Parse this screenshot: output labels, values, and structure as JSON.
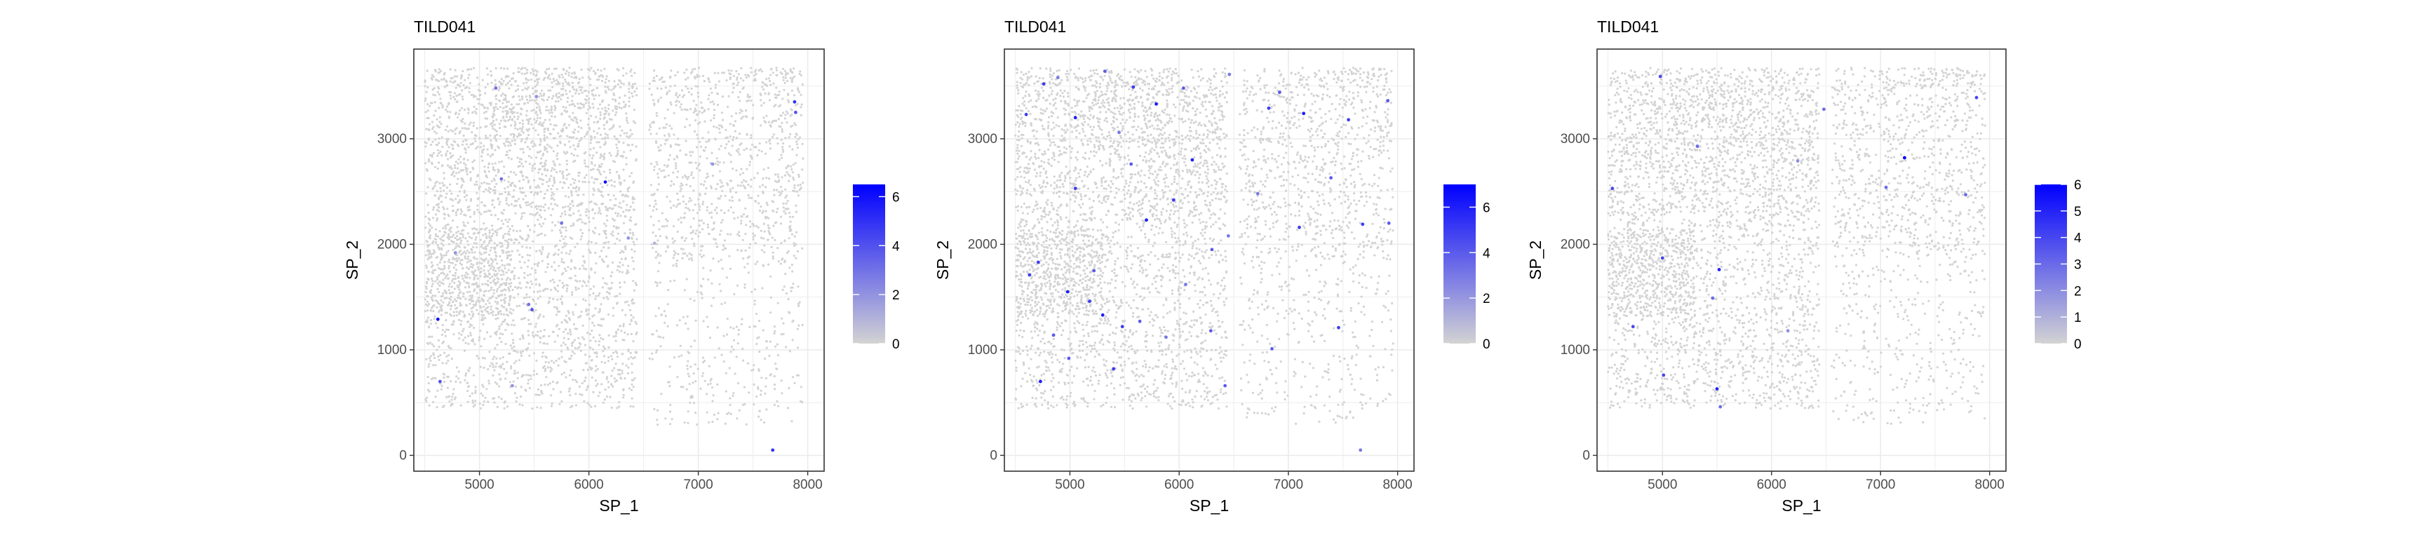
{
  "chart_data": [
    {
      "type": "scatter",
      "title": "TILD041",
      "xlabel": "SP_1",
      "ylabel": "SP_2",
      "xlim": [
        4400,
        8150
      ],
      "ylim": [
        -150,
        3850
      ],
      "xticks": [
        5000,
        6000,
        7000,
        8000
      ],
      "yticks": [
        0,
        1000,
        2000,
        3000
      ],
      "grid": true,
      "legend": {
        "position": "right",
        "range": [
          0,
          6.5
        ],
        "ticks": [
          0,
          2,
          4,
          6
        ],
        "low_color": "#d3d3d3",
        "high_color": "#0000ff"
      },
      "highlights": [
        {
          "x": 5150,
          "y": 3480,
          "v": 3
        },
        {
          "x": 5520,
          "y": 3400,
          "v": 2
        },
        {
          "x": 7880,
          "y": 3350,
          "v": 5
        },
        {
          "x": 7890,
          "y": 3250,
          "v": 4
        },
        {
          "x": 5200,
          "y": 2620,
          "v": 3
        },
        {
          "x": 6150,
          "y": 2590,
          "v": 6
        },
        {
          "x": 7130,
          "y": 2760,
          "v": 2
        },
        {
          "x": 6360,
          "y": 2060,
          "v": 2
        },
        {
          "x": 5750,
          "y": 2200,
          "v": 3
        },
        {
          "x": 4780,
          "y": 1920,
          "v": 2
        },
        {
          "x": 5480,
          "y": 1380,
          "v": 4
        },
        {
          "x": 4620,
          "y": 1290,
          "v": 6
        },
        {
          "x": 5450,
          "y": 1430,
          "v": 3
        },
        {
          "x": 4640,
          "y": 700,
          "v": 4
        },
        {
          "x": 6600,
          "y": 2010,
          "v": 1
        },
        {
          "x": 7680,
          "y": 50,
          "v": 5
        },
        {
          "x": 5300,
          "y": 660,
          "v": 2
        }
      ]
    },
    {
      "type": "scatter",
      "title": "TILD041",
      "xlabel": "SP_1",
      "ylabel": "SP_2",
      "xlim": [
        4400,
        8150
      ],
      "ylim": [
        -150,
        3850
      ],
      "xticks": [
        5000,
        6000,
        7000,
        8000
      ],
      "yticks": [
        0,
        1000,
        2000,
        3000
      ],
      "grid": true,
      "legend": {
        "position": "right",
        "range": [
          0,
          7
        ],
        "ticks": [
          0,
          2,
          4,
          6
        ],
        "low_color": "#d3d3d3",
        "high_color": "#0000ff"
      },
      "highlights": [
        {
          "x": 4760,
          "y": 3520,
          "v": 5
        },
        {
          "x": 4890,
          "y": 3580,
          "v": 3
        },
        {
          "x": 5320,
          "y": 3640,
          "v": 4
        },
        {
          "x": 5580,
          "y": 3490,
          "v": 5
        },
        {
          "x": 5790,
          "y": 3330,
          "v": 6
        },
        {
          "x": 6040,
          "y": 3480,
          "v": 4
        },
        {
          "x": 6460,
          "y": 3610,
          "v": 3
        },
        {
          "x": 6820,
          "y": 3290,
          "v": 5
        },
        {
          "x": 6920,
          "y": 3440,
          "v": 4
        },
        {
          "x": 7140,
          "y": 3240,
          "v": 6
        },
        {
          "x": 7550,
          "y": 3180,
          "v": 5
        },
        {
          "x": 7910,
          "y": 3360,
          "v": 4
        },
        {
          "x": 4600,
          "y": 3230,
          "v": 5
        },
        {
          "x": 5050,
          "y": 3200,
          "v": 6
        },
        {
          "x": 5450,
          "y": 3060,
          "v": 3
        },
        {
          "x": 6120,
          "y": 2800,
          "v": 6
        },
        {
          "x": 5560,
          "y": 2760,
          "v": 4
        },
        {
          "x": 5050,
          "y": 2530,
          "v": 5
        },
        {
          "x": 5950,
          "y": 2420,
          "v": 5
        },
        {
          "x": 6720,
          "y": 2480,
          "v": 3
        },
        {
          "x": 7390,
          "y": 2630,
          "v": 4
        },
        {
          "x": 7680,
          "y": 2190,
          "v": 5
        },
        {
          "x": 7920,
          "y": 2200,
          "v": 4
        },
        {
          "x": 6450,
          "y": 2080,
          "v": 3
        },
        {
          "x": 7100,
          "y": 2160,
          "v": 5
        },
        {
          "x": 5700,
          "y": 2230,
          "v": 6
        },
        {
          "x": 4710,
          "y": 1830,
          "v": 5
        },
        {
          "x": 4980,
          "y": 1550,
          "v": 6
        },
        {
          "x": 5180,
          "y": 1460,
          "v": 5
        },
        {
          "x": 5300,
          "y": 1330,
          "v": 6
        },
        {
          "x": 5480,
          "y": 1220,
          "v": 5
        },
        {
          "x": 5640,
          "y": 1270,
          "v": 4
        },
        {
          "x": 4850,
          "y": 1140,
          "v": 4
        },
        {
          "x": 4630,
          "y": 1710,
          "v": 5
        },
        {
          "x": 5220,
          "y": 1750,
          "v": 4
        },
        {
          "x": 6300,
          "y": 1950,
          "v": 4
        },
        {
          "x": 6060,
          "y": 1620,
          "v": 3
        },
        {
          "x": 6290,
          "y": 1180,
          "v": 4
        },
        {
          "x": 5880,
          "y": 1120,
          "v": 3
        },
        {
          "x": 6850,
          "y": 1010,
          "v": 4
        },
        {
          "x": 7460,
          "y": 1210,
          "v": 5
        },
        {
          "x": 4730,
          "y": 700,
          "v": 6
        },
        {
          "x": 4990,
          "y": 920,
          "v": 4
        },
        {
          "x": 5400,
          "y": 820,
          "v": 5
        },
        {
          "x": 6420,
          "y": 660,
          "v": 4
        },
        {
          "x": 7660,
          "y": 50,
          "v": 3
        }
      ]
    },
    {
      "type": "scatter",
      "title": "TILD041",
      "xlabel": "SP_1",
      "ylabel": "SP_2",
      "xlim": [
        4400,
        8150
      ],
      "ylim": [
        -150,
        3850
      ],
      "xticks": [
        5000,
        6000,
        7000,
        8000
      ],
      "yticks": [
        0,
        1000,
        2000,
        3000
      ],
      "grid": true,
      "legend": {
        "position": "right",
        "range": [
          0,
          6
        ],
        "ticks": [
          0,
          1,
          2,
          3,
          4,
          5,
          6
        ],
        "low_color": "#d3d3d3",
        "high_color": "#0000ff"
      },
      "highlights": [
        {
          "x": 4980,
          "y": 3590,
          "v": 4
        },
        {
          "x": 4540,
          "y": 2530,
          "v": 4
        },
        {
          "x": 7050,
          "y": 2540,
          "v": 3
        },
        {
          "x": 7220,
          "y": 2820,
          "v": 6
        },
        {
          "x": 7780,
          "y": 2470,
          "v": 3
        },
        {
          "x": 7880,
          "y": 3390,
          "v": 4
        },
        {
          "x": 6480,
          "y": 3280,
          "v": 3
        },
        {
          "x": 5320,
          "y": 2930,
          "v": 3
        },
        {
          "x": 6240,
          "y": 2790,
          "v": 2
        },
        {
          "x": 5000,
          "y": 1870,
          "v": 4
        },
        {
          "x": 5520,
          "y": 1760,
          "v": 5
        },
        {
          "x": 4730,
          "y": 1220,
          "v": 4
        },
        {
          "x": 5460,
          "y": 1490,
          "v": 3
        },
        {
          "x": 5010,
          "y": 760,
          "v": 4
        },
        {
          "x": 5500,
          "y": 630,
          "v": 5
        },
        {
          "x": 5530,
          "y": 460,
          "v": 3
        },
        {
          "x": 6150,
          "y": 1180,
          "v": 2
        }
      ]
    }
  ]
}
